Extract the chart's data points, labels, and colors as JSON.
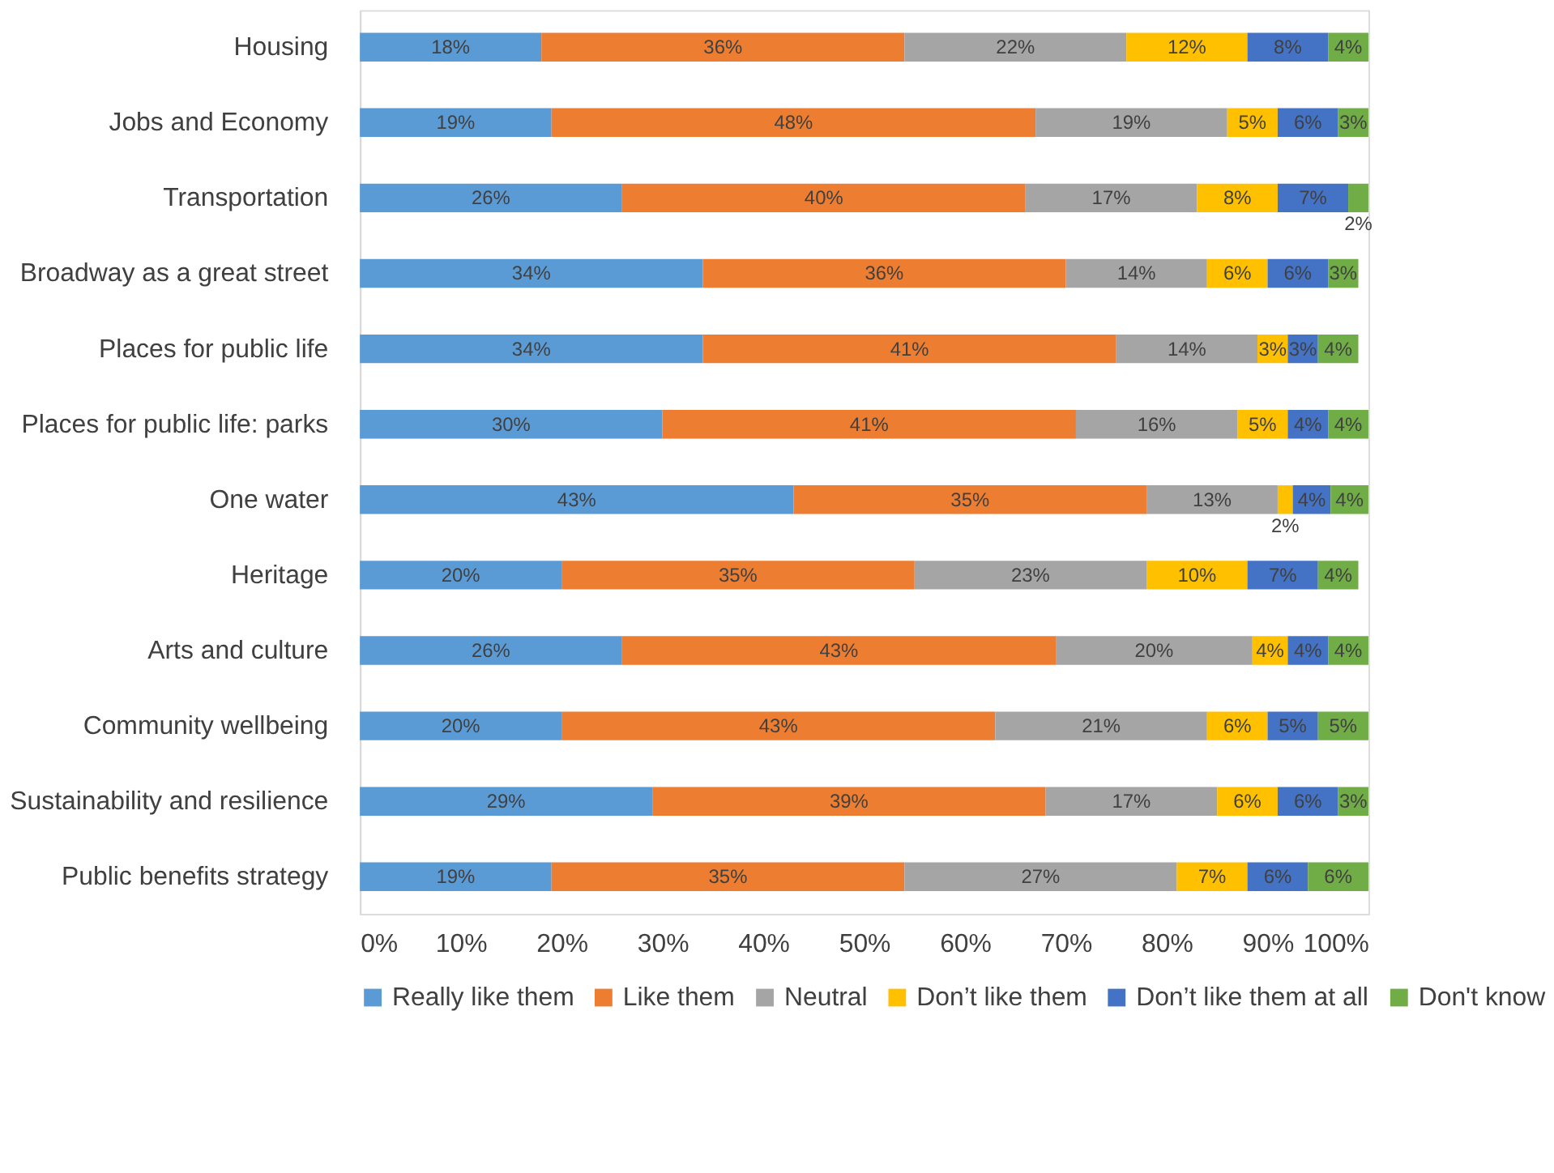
{
  "chart_data": {
    "type": "bar",
    "orientation": "horizontal",
    "stacked": true,
    "categories": [
      "Housing",
      "Jobs and Economy",
      "Transportation",
      "Broadway as a great street",
      "Places for public life",
      "Places for public life: parks",
      "One water",
      "Heritage",
      "Arts and culture",
      "Community wellbeing",
      "Sustainability and resilience",
      "Public benefits strategy"
    ],
    "series": [
      {
        "name": "Really like them",
        "color": "#5b9bd5",
        "values": [
          18,
          19,
          26,
          34,
          34,
          30,
          43,
          20,
          26,
          20,
          29,
          19
        ],
        "value_labels": [
          "18%",
          "19%",
          "26%",
          "34%",
          "34%",
          "30%",
          "43%",
          "20%",
          "26%",
          "20%",
          "29%",
          "19%"
        ]
      },
      {
        "name": "Like them",
        "color": "#ed7d31",
        "values": [
          36,
          48,
          40,
          36,
          41,
          41,
          35,
          35,
          43,
          43,
          39,
          35
        ],
        "value_labels": [
          "36%",
          "48%",
          "40%",
          "36%",
          "41%",
          "41%",
          "35%",
          "35%",
          "43%",
          "43%",
          "39%",
          "35%"
        ]
      },
      {
        "name": "Neutral",
        "color": "#a5a5a5",
        "values": [
          22,
          19,
          17,
          14,
          14,
          16,
          13,
          23,
          19.5,
          21,
          17,
          27
        ],
        "value_labels": [
          "22%",
          "19%",
          "17%",
          "14%",
          "14%",
          "16%",
          "13%",
          "23%",
          "20%",
          "21%",
          "17%",
          "27%"
        ]
      },
      {
        "name": "Don’t like them",
        "color": "#ffc000",
        "values": [
          12,
          5,
          8,
          6,
          3,
          5,
          1.5,
          10,
          3.5,
          6,
          6,
          7
        ],
        "value_labels": [
          "12%",
          "5%",
          "8%",
          "6%",
          "3%",
          "5%",
          "2%",
          "10%",
          "4%",
          "6%",
          "6%",
          "7%"
        ]
      },
      {
        "name": "Don’t like them at all",
        "color": "#4472c4",
        "values": [
          8,
          6,
          7,
          6,
          3,
          4,
          3.75,
          7,
          4,
          5,
          6,
          6
        ],
        "value_labels": [
          "8%",
          "6%",
          "7%",
          "6%",
          "3%",
          "4%",
          "4%",
          "7%",
          "4%",
          "5%",
          "6%",
          "6%"
        ]
      },
      {
        "name": "Don't know",
        "color": "#70ad47",
        "values": [
          4,
          3,
          2,
          3,
          4,
          4,
          3.75,
          4,
          4,
          5,
          3,
          6
        ],
        "value_labels": [
          "4%",
          "3%",
          "2%",
          "3%",
          "4%",
          "4%",
          "4%",
          "4%",
          "4%",
          "5%",
          "3%",
          "6%"
        ]
      }
    ],
    "xlim": [
      0,
      100
    ],
    "xticks": [
      {
        "value": 0,
        "label": "0%"
      },
      {
        "value": 10,
        "label": "10%"
      },
      {
        "value": 20,
        "label": "20%"
      },
      {
        "value": 30,
        "label": "30%"
      },
      {
        "value": 40,
        "label": "40%"
      },
      {
        "value": 50,
        "label": "50%"
      },
      {
        "value": 60,
        "label": "60%"
      },
      {
        "value": 70,
        "label": "70%"
      },
      {
        "value": 80,
        "label": "80%"
      },
      {
        "value": 90,
        "label": "90%"
      },
      {
        "value": 100,
        "label": "100%"
      }
    ],
    "grid": false,
    "legend": "bottom"
  }
}
